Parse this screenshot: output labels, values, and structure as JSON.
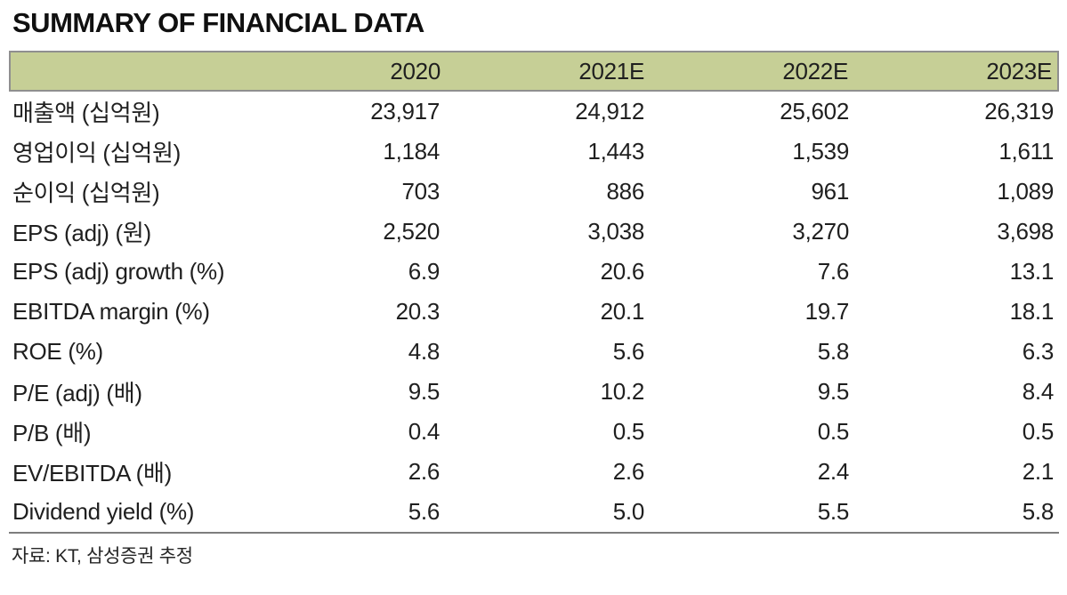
{
  "title": "SUMMARY OF FINANCIAL DATA",
  "table": {
    "columns": [
      "",
      "2020",
      "2021E",
      "2022E",
      "2023E"
    ],
    "rows": [
      {
        "label": "매출액 (십억원)",
        "values": [
          "23,917",
          "24,912",
          "25,602",
          "26,319"
        ]
      },
      {
        "label": "영업이익 (십억원)",
        "values": [
          "1,184",
          "1,443",
          "1,539",
          "1,611"
        ]
      },
      {
        "label": "순이익 (십억원)",
        "values": [
          "703",
          "886",
          "961",
          "1,089"
        ]
      },
      {
        "label": "EPS (adj) (원)",
        "values": [
          "2,520",
          "3,038",
          "3,270",
          "3,698"
        ]
      },
      {
        "label": "EPS (adj) growth (%)",
        "values": [
          "6.9",
          "20.6",
          "7.6",
          "13.1"
        ]
      },
      {
        "label": "EBITDA margin (%)",
        "values": [
          "20.3",
          "20.1",
          "19.7",
          "18.1"
        ]
      },
      {
        "label": "ROE (%)",
        "values": [
          "4.8",
          "5.6",
          "5.8",
          "6.3"
        ]
      },
      {
        "label": "P/E (adj) (배)",
        "values": [
          "9.5",
          "10.2",
          "9.5",
          "8.4"
        ]
      },
      {
        "label": "P/B (배)",
        "values": [
          "0.4",
          "0.5",
          "0.5",
          "0.5"
        ]
      },
      {
        "label": "EV/EBITDA (배)",
        "values": [
          "2.6",
          "2.6",
          "2.4",
          "2.1"
        ]
      },
      {
        "label": "Dividend yield (%)",
        "values": [
          "5.6",
          "5.0",
          "5.5",
          "5.8"
        ]
      }
    ]
  },
  "footer": {
    "source": "자료: KT, 삼성증권 추정"
  },
  "colors": {
    "header_bg": "#c6cf96",
    "header_border": "#8f8f8f",
    "rule": "#7d7d7d"
  }
}
